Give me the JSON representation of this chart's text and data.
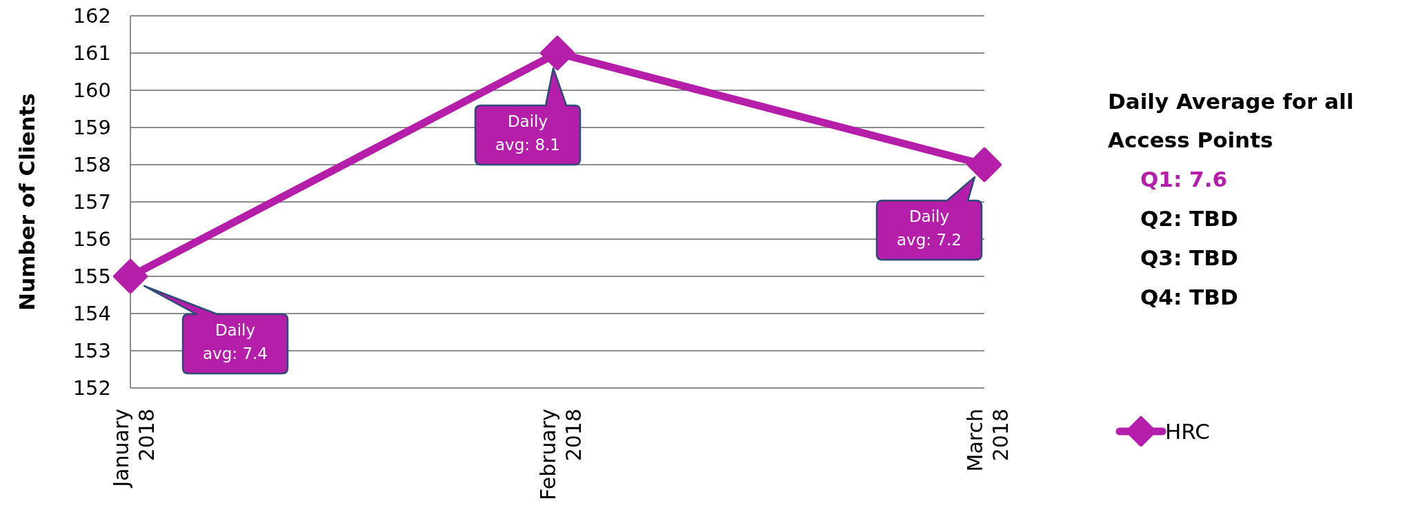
{
  "chart_data": {
    "type": "line",
    "ylabel": "Number of Clients",
    "categories": [
      "January 2018",
      "February 2018",
      "March 2018"
    ],
    "series": [
      {
        "name": "HRC",
        "color": "#b41ea8",
        "values": [
          155,
          161,
          158
        ]
      }
    ],
    "ylim": [
      152,
      162
    ],
    "yticks": [
      152,
      153,
      154,
      155,
      156,
      157,
      158,
      159,
      160,
      161,
      162
    ],
    "grid": "y",
    "legend": "right",
    "marker": "diamond",
    "line_style": "solid",
    "annotations": [
      "Daily avg: 7.4",
      "Daily avg: 8.1",
      "Daily avg: 7.2",
      "Daily Average for all Access Points",
      "Q1: 7.6",
      "Q2: TBD",
      "Q3: TBD",
      "Q4: TBD"
    ]
  }
}
